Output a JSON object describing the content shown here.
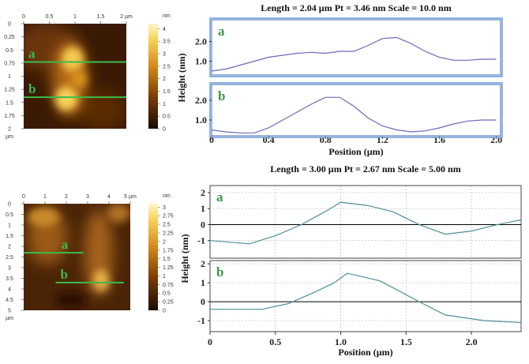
{
  "chart_data": [
    {
      "type": "image",
      "xlim": [
        0,
        2
      ],
      "ylim": [
        0,
        2
      ],
      "xticks": [
        0,
        0.5,
        1,
        1.5,
        {
          "value": 2,
          "label": "2 µm"
        }
      ],
      "yticks": [
        0,
        0.25,
        0.5,
        0.75,
        1,
        1.25,
        1.5,
        1.75,
        2
      ],
      "y_unit": "µm",
      "colorbar": {
        "unit": "nm",
        "clim": [
          0,
          4.2
        ],
        "ticks": [
          0,
          0.5,
          1,
          1.5,
          2,
          2.5,
          3,
          3.5,
          4
        ]
      },
      "line_color": "#3dbb4a",
      "lines": [
        {
          "label": "a",
          "y": 0.73,
          "x": [
            0,
            2
          ]
        },
        {
          "label": "b",
          "y": 1.4,
          "x": [
            0,
            2
          ]
        }
      ]
    },
    {
      "type": "profile",
      "title": "Length = 2.04 µm Pt = 3.46 nm Scale = 10.0 nm",
      "x_label": "Position (µm)",
      "y_label": "Height (nm)",
      "xlim": [
        0,
        2.03
      ],
      "xticks": [
        0,
        0.4,
        0.8,
        1.2,
        1.6,
        {
          "value": 2,
          "label": "2.0"
        }
      ],
      "grid": false,
      "color": "#6a6ab8",
      "panels": [
        {
          "label": "a",
          "ylim": [
            0.3,
            3.1
          ],
          "yticks": [
            {
              "value": 1,
              "label": "1.0"
            },
            {
              "value": 2,
              "label": "2.0"
            }
          ],
          "x": [
            0,
            0.1,
            0.2,
            0.3,
            0.4,
            0.5,
            0.6,
            0.7,
            0.8,
            0.9,
            1.0,
            1.1,
            1.2,
            1.3,
            1.4,
            1.5,
            1.6,
            1.7,
            1.8,
            1.9,
            2.0
          ],
          "values": [
            0.5,
            0.6,
            0.8,
            1.0,
            1.2,
            1.3,
            1.4,
            1.45,
            1.4,
            1.5,
            1.5,
            1.8,
            2.15,
            2.2,
            1.9,
            1.5,
            1.2,
            1.05,
            1.05,
            1.1,
            1.1
          ]
        },
        {
          "label": "b",
          "ylim": [
            0.2,
            2.8
          ],
          "yticks": [
            {
              "value": 1,
              "label": "1.0"
            },
            {
              "value": 2,
              "label": "2.0"
            }
          ],
          "x": [
            0,
            0.1,
            0.2,
            0.3,
            0.4,
            0.5,
            0.6,
            0.7,
            0.8,
            0.9,
            1.0,
            1.1,
            1.2,
            1.3,
            1.4,
            1.5,
            1.6,
            1.7,
            1.8,
            1.9,
            2.0
          ],
          "values": [
            0.5,
            0.4,
            0.35,
            0.35,
            0.6,
            1.0,
            1.4,
            1.8,
            2.15,
            2.15,
            1.7,
            1.1,
            0.7,
            0.5,
            0.4,
            0.45,
            0.6,
            0.8,
            0.95,
            1.0,
            1.0
          ]
        }
      ]
    },
    {
      "type": "image",
      "xlim": [
        0,
        5
      ],
      "ylim": [
        0,
        5
      ],
      "xticks": [
        0,
        1,
        2,
        3,
        4,
        {
          "value": 5,
          "label": "5 µm"
        }
      ],
      "yticks": [
        0,
        0.5,
        1,
        1.5,
        2,
        2.5,
        3,
        3.5,
        4,
        4.5,
        5
      ],
      "y_unit": "µm",
      "colorbar": {
        "unit": "nm",
        "clim": [
          0,
          3.1
        ],
        "ticks": [
          0,
          0.25,
          0.5,
          0.75,
          1,
          1.25,
          1.5,
          1.75,
          2,
          2.25,
          2.5,
          2.75,
          3
        ]
      },
      "line_color": "#3dbb4a",
      "lines": [
        {
          "label": "a",
          "y": 2.3,
          "x": [
            0,
            2.8
          ]
        },
        {
          "label": "b",
          "y": 3.7,
          "x": [
            1.5,
            4.7
          ]
        }
      ]
    },
    {
      "type": "profile",
      "title": "Length = 3.00 µm Pt = 2.67 nm Scale = 5.00 nm",
      "x_label": "Position (µm)",
      "y_label": "Height (nm)",
      "xlim": [
        0,
        2.38
      ],
      "xticks": [
        0,
        0.5,
        {
          "value": 1,
          "label": "1.0"
        },
        1.5,
        {
          "value": 2,
          "label": "2.0"
        }
      ],
      "grid": true,
      "color": "#4d8f9a",
      "panels": [
        {
          "label": "a",
          "ylim": [
            -2.1,
            2.44
          ],
          "yticks": [
            -1,
            0,
            1,
            2
          ],
          "x": [
            0,
            0.15,
            0.3,
            0.5,
            0.7,
            0.9,
            1.0,
            1.2,
            1.4,
            1.6,
            1.8,
            2.0,
            2.2,
            2.38
          ],
          "values": [
            -1.0,
            -1.1,
            -1.2,
            -0.7,
            0.0,
            0.9,
            1.4,
            1.2,
            0.8,
            0.0,
            -0.6,
            -0.4,
            0.0,
            0.3
          ]
        },
        {
          "label": "b",
          "ylim": [
            -1.58,
            2.17
          ],
          "yticks": [
            -1,
            0,
            1,
            2
          ],
          "x": [
            0,
            0.2,
            0.4,
            0.6,
            0.8,
            0.95,
            1.05,
            1.3,
            1.6,
            1.8,
            2.1,
            2.38
          ],
          "values": [
            -0.4,
            -0.4,
            -0.4,
            -0.1,
            0.5,
            1.0,
            1.5,
            1.1,
            0.0,
            -0.7,
            -1.0,
            -1.1
          ]
        }
      ]
    }
  ]
}
